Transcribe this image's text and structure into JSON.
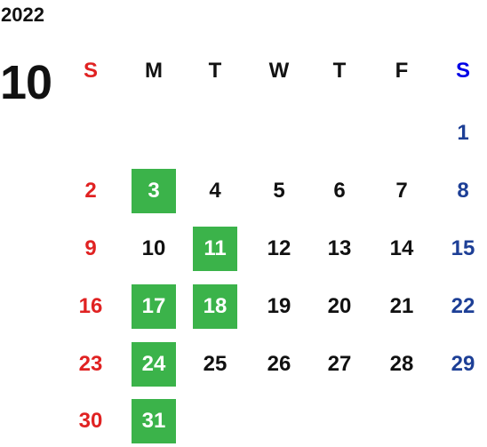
{
  "year": "2022",
  "month": "10",
  "weekdays": [
    "S",
    "M",
    "T",
    "W",
    "T",
    "F",
    "S"
  ],
  "weeks": [
    [
      null,
      null,
      null,
      null,
      null,
      null,
      1
    ],
    [
      2,
      {
        "day": 3,
        "highlight": true
      },
      4,
      5,
      6,
      7,
      8
    ],
    [
      9,
      10,
      {
        "day": 11,
        "highlight": true
      },
      12,
      13,
      14,
      15
    ],
    [
      16,
      {
        "day": 17,
        "highlight": true
      },
      {
        "day": 18,
        "highlight": true
      },
      19,
      20,
      21,
      22
    ],
    [
      23,
      {
        "day": 24,
        "highlight": true
      },
      25,
      26,
      27,
      28,
      29
    ],
    [
      30,
      {
        "day": 31,
        "highlight": true
      },
      null,
      null,
      null,
      null,
      null
    ]
  ]
}
